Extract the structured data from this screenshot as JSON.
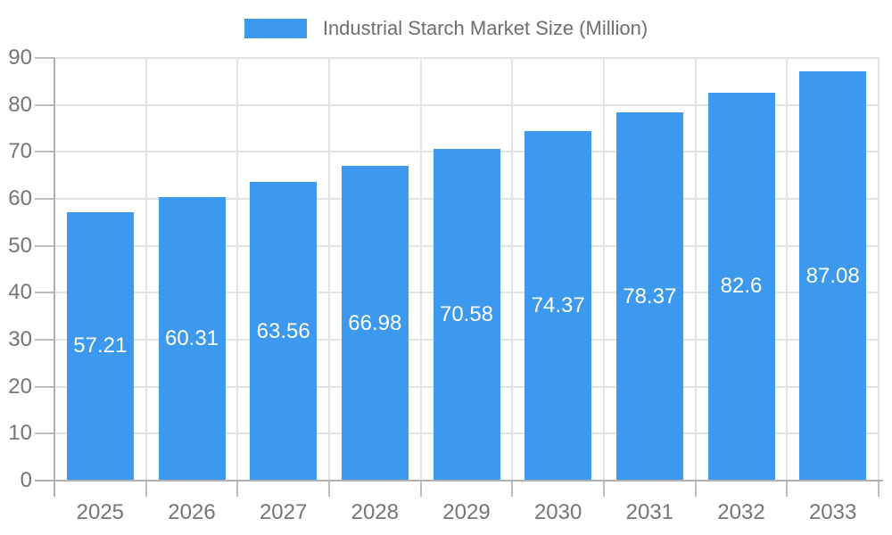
{
  "legend": {
    "label": "Industrial Starch Market Size (Million)"
  },
  "colors": {
    "bar": "#3C99EE",
    "axis_label": "#757575",
    "legend_text": "#6E6E6E",
    "value_label": "#FFFFFF",
    "gridline": "#E3E3E3",
    "axis_line": "#B0B0B0",
    "tick": "#BDBDBD"
  },
  "chart_data": {
    "type": "bar",
    "title": "Industrial Starch Market Size (Million)",
    "categories": [
      "2025",
      "2026",
      "2027",
      "2028",
      "2029",
      "2030",
      "2031",
      "2032",
      "2033"
    ],
    "values": [
      57.21,
      60.31,
      63.56,
      66.98,
      70.58,
      74.37,
      78.37,
      82.6,
      87.08
    ],
    "value_labels": [
      "57.21",
      "60.31",
      "63.56",
      "66.98",
      "70.58",
      "74.37",
      "78.37",
      "82.6",
      "87.08"
    ],
    "xlabel": "",
    "ylabel": "",
    "ylim": [
      0,
      90
    ],
    "ytick_step": 10,
    "grid": true,
    "legend_position": "top",
    "value_label_position": "inside-center"
  }
}
